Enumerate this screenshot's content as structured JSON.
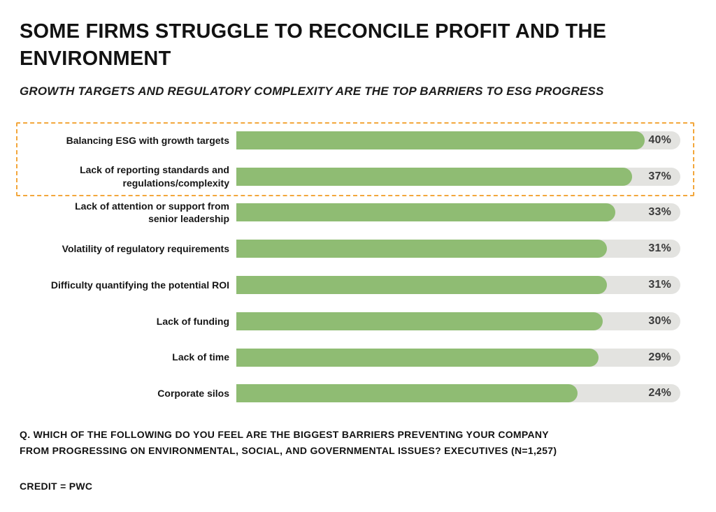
{
  "chart_data": {
    "type": "bar",
    "orientation": "horizontal",
    "title_lines": [
      "SOME FIRMS STRUGGLE TO RECONCILE PROFIT AND THE",
      "ENVIRONMENT"
    ],
    "subtitle": "GROWTH TARGETS AND REGULATORY COMPLEXITY ARE THE TOP BARRIERS TO ESG PROGRESS",
    "categories": [
      "Balancing ESG with growth targets",
      "Lack of reporting standards and regulations/complexity",
      "Lack of attention or support from senior leadership",
      "Volatility of regulatory requirements",
      "Difficulty quantifying the potential ROI",
      "Lack of funding",
      "Lack of time",
      "Corporate silos"
    ],
    "category_display_lines": [
      [
        "Balancing ESG with growth targets"
      ],
      [
        "Lack of reporting standards and",
        "regulations/complexity"
      ],
      [
        "Lack of attention or support from",
        "senior leadership"
      ],
      [
        "Volatility of regulatory requirements"
      ],
      [
        "Difficulty quantifying the potential ROI"
      ],
      [
        "Lack of funding"
      ],
      [
        "Lack of time"
      ],
      [
        "Corporate silos"
      ]
    ],
    "values": [
      40,
      37,
      33,
      31,
      31,
      30,
      29,
      24
    ],
    "value_suffix": "%",
    "grid": false,
    "legend": false,
    "highlight": {
      "rows": [
        0,
        1
      ],
      "style": "dashed-box",
      "color": "#F3A73C"
    },
    "colors": {
      "bar_fill": "#8FBC73",
      "bar_track": "#E3E3E0",
      "value_text": "#3B3B3B"
    },
    "note_lines": [
      "Q. WHICH OF THE FOLLOWING DO YOU FEEL ARE THE BIGGEST BARRIERS PREVENTING YOUR COMPANY",
      "FROM PROGRESSING ON ENVIRONMENTAL, SOCIAL, AND GOVERNMENTAL ISSUES? EXECUTIVES (N=1,257)"
    ],
    "credit": "CREDIT = PWC"
  }
}
